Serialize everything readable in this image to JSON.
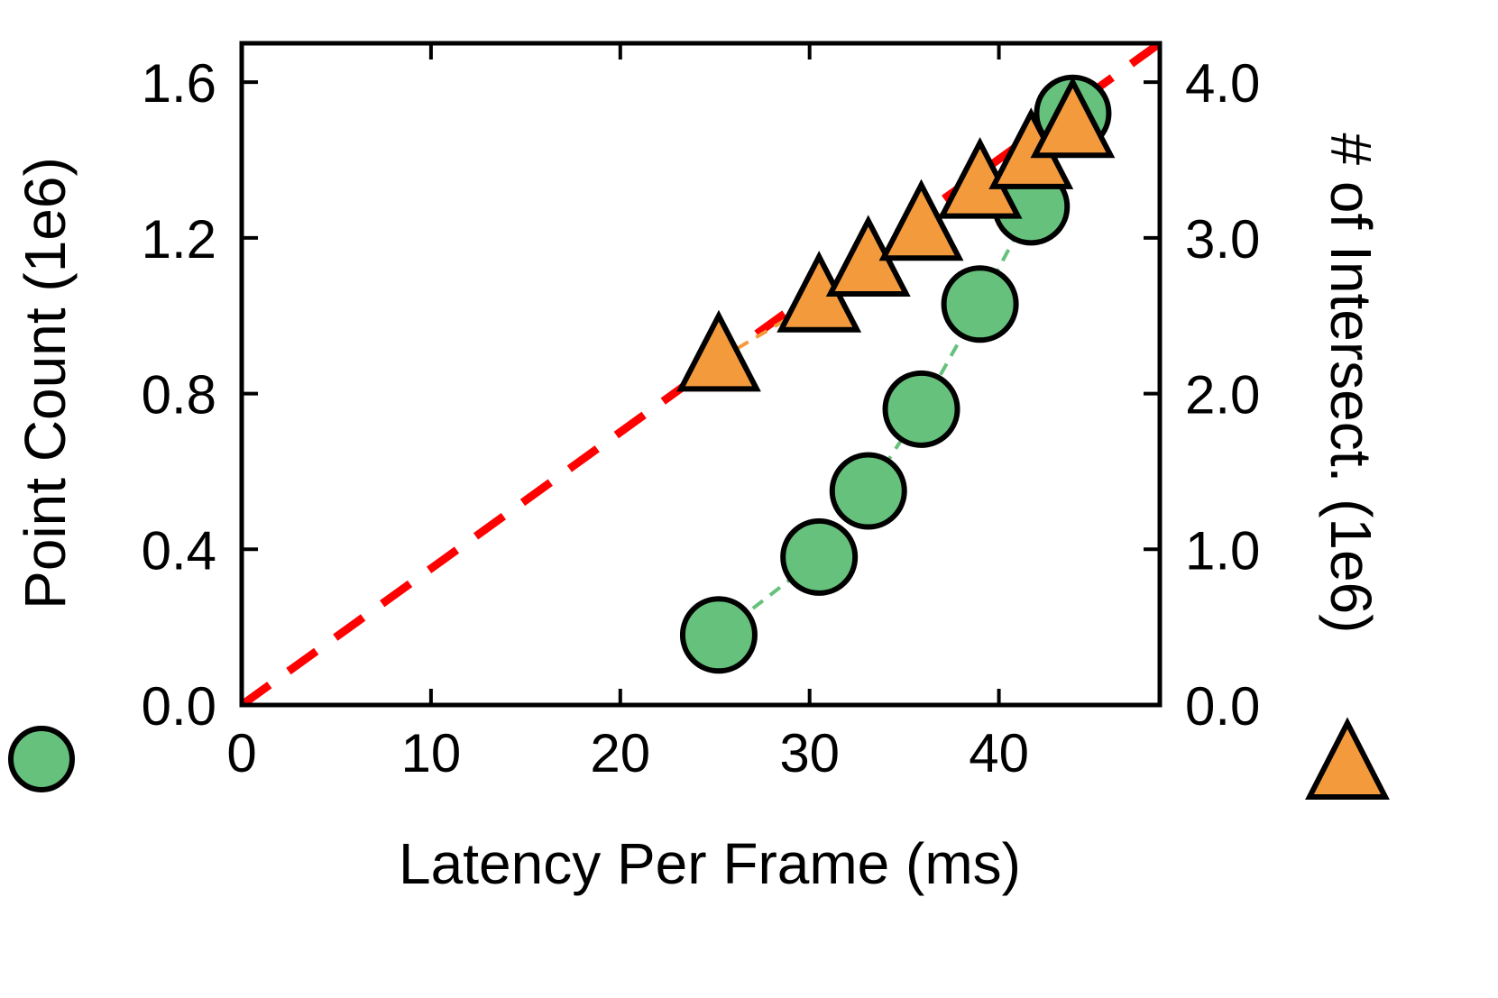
{
  "chart_data": {
    "type": "scatter",
    "xlabel": "Latency Per Frame (ms)",
    "ylabel_left": "Point Count (1e6)",
    "ylabel_right": "# of Intersect. (1e6)",
    "xlim": [
      0,
      48.5
    ],
    "ylim_left": [
      0,
      1.7
    ],
    "ylim_right": [
      0,
      4.25
    ],
    "x_ticks": [
      0,
      10,
      20,
      30,
      40
    ],
    "x_tick_labels": [
      "0",
      "10",
      "20",
      "30",
      "40"
    ],
    "y_left_ticks": [
      0,
      0.4,
      0.8,
      1.2,
      1.6
    ],
    "y_left_tick_labels": [
      "0.0",
      "0.4",
      "0.8",
      "1.2",
      "1.6"
    ],
    "y_right_ticks": [
      0,
      1,
      2,
      3,
      4
    ],
    "y_right_tick_labels": [
      "0.0",
      "1.0",
      "2.0",
      "3.0",
      "4.0"
    ],
    "grid": false,
    "series": [
      {
        "marker": "circle",
        "axis": "left",
        "color": "#66c17c",
        "x": [
          25.2,
          30.5,
          33.1,
          35.9,
          39.0,
          41.7,
          43.9
        ],
        "y": [
          0.18,
          0.38,
          0.55,
          0.76,
          1.03,
          1.28,
          1.52
        ]
      },
      {
        "marker": "triangle",
        "axis": "right",
        "color": "#f39a3d",
        "x": [
          25.2,
          30.5,
          33.1,
          35.9,
          39.0,
          41.7,
          43.9
        ],
        "y": [
          2.22,
          2.6,
          2.83,
          3.06,
          3.33,
          3.52,
          3.72
        ]
      }
    ],
    "reference_line": {
      "color": "#ff0000",
      "style": "dashed",
      "axis": "left",
      "x": [
        0,
        48.5
      ],
      "y": [
        0,
        1.7
      ]
    },
    "legend": {
      "left_marker": "circle",
      "right_marker": "triangle"
    }
  }
}
